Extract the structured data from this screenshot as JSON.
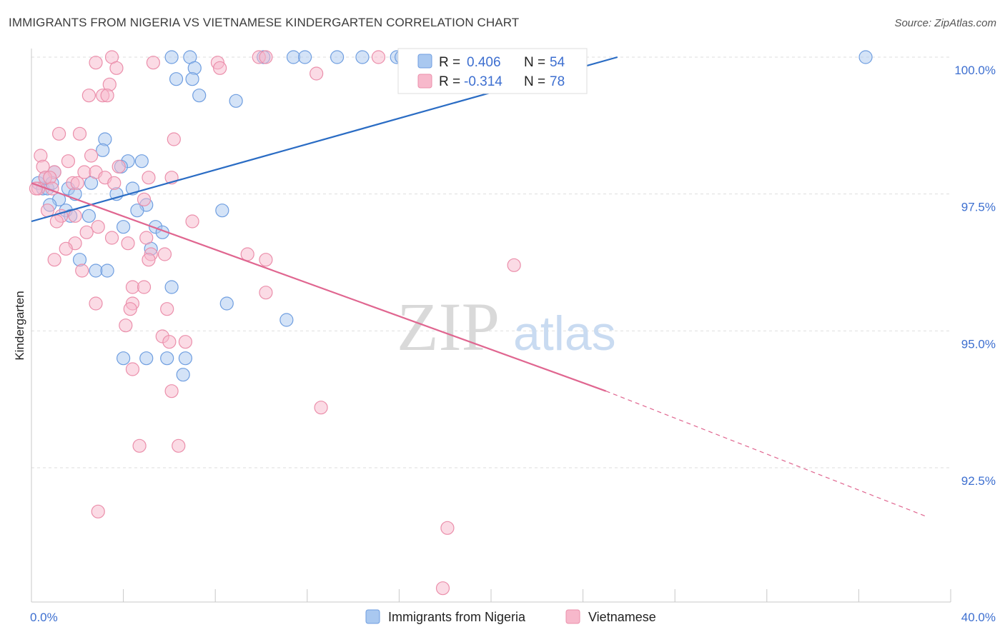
{
  "header": {
    "title": "IMMIGRANTS FROM NIGERIA VS VIETNAMESE KINDERGARTEN CORRELATION CHART",
    "source": "Source: ZipAtlas.com"
  },
  "watermark": {
    "zip": "ZIP",
    "atlas": "atlas"
  },
  "chart_data": {
    "type": "scatter",
    "title": "IMMIGRANTS FROM NIGERIA VS VIETNAMESE KINDERGARTEN CORRELATION CHART",
    "ylabel": "Kindergarten",
    "xlim": [
      0,
      40
    ],
    "ylim": [
      90.5,
      100.3
    ],
    "x_tick_labels": [
      "0.0%",
      "40.0%"
    ],
    "y_ticks": [
      92.5,
      95.0,
      97.5,
      100.0
    ],
    "y_tick_labels": [
      "92.5%",
      "95.0%",
      "97.5%",
      "100.0%"
    ],
    "grid": true,
    "legend_position": "top-center",
    "series": [
      {
        "name": "Immigrants from Nigeria",
        "color": "#a9c8f0",
        "stroke": "#6f9ee0",
        "line_color": "#2a6cc4",
        "r_label": "R =",
        "r_value": "0.406",
        "n_label": "N =",
        "n_value": "54",
        "trend": {
          "x": [
            0,
            25.5
          ],
          "y": [
            97.0,
            100.0
          ],
          "dashed_extension": false
        },
        "points": [
          [
            6.1,
            100.0
          ],
          [
            6.9,
            100.0
          ],
          [
            10.1,
            100.0
          ],
          [
            11.4,
            100.0
          ],
          [
            11.9,
            100.0
          ],
          [
            13.3,
            100.0
          ],
          [
            14.4,
            100.0
          ],
          [
            15.9,
            100.0
          ],
          [
            16.1,
            100.0
          ],
          [
            36.3,
            100.0
          ],
          [
            7.1,
            99.8
          ],
          [
            6.3,
            99.6
          ],
          [
            7.0,
            99.6
          ],
          [
            7.3,
            99.3
          ],
          [
            8.9,
            99.2
          ],
          [
            3.2,
            98.5
          ],
          [
            3.1,
            98.3
          ],
          [
            4.2,
            98.1
          ],
          [
            4.8,
            98.1
          ],
          [
            3.9,
            98.0
          ],
          [
            1.0,
            97.9
          ],
          [
            0.3,
            97.7
          ],
          [
            0.5,
            97.6
          ],
          [
            2.6,
            97.7
          ],
          [
            0.7,
            97.6
          ],
          [
            1.6,
            97.6
          ],
          [
            4.4,
            97.6
          ],
          [
            1.9,
            97.5
          ],
          [
            3.7,
            97.5
          ],
          [
            1.2,
            97.4
          ],
          [
            0.8,
            97.3
          ],
          [
            5.0,
            97.3
          ],
          [
            1.5,
            97.2
          ],
          [
            4.6,
            97.2
          ],
          [
            8.3,
            97.2
          ],
          [
            1.7,
            97.1
          ],
          [
            2.5,
            97.1
          ],
          [
            4.0,
            96.9
          ],
          [
            5.4,
            96.9
          ],
          [
            5.7,
            96.8
          ],
          [
            5.2,
            96.5
          ],
          [
            2.1,
            96.3
          ],
          [
            2.8,
            96.1
          ],
          [
            3.3,
            96.1
          ],
          [
            6.1,
            95.8
          ],
          [
            8.5,
            95.5
          ],
          [
            11.1,
            95.2
          ],
          [
            4.0,
            94.5
          ],
          [
            5.0,
            94.5
          ],
          [
            5.9,
            94.5
          ],
          [
            6.7,
            94.5
          ],
          [
            6.6,
            94.2
          ],
          [
            0.6,
            97.8
          ],
          [
            0.9,
            97.7
          ]
        ]
      },
      {
        "name": "Vietnamese",
        "color": "#f7b8cb",
        "stroke": "#eb8fab",
        "line_color": "#e06690",
        "r_label": "R =",
        "r_value": "-0.314",
        "n_label": "N =",
        "n_value": "78",
        "trend": {
          "x": [
            0,
            25.0
          ],
          "y": [
            97.7,
            93.9
          ],
          "dashed_to": [
            39.0,
            91.6
          ]
        },
        "points": [
          [
            3.5,
            100.0
          ],
          [
            8.1,
            99.9
          ],
          [
            9.9,
            100.0
          ],
          [
            10.2,
            100.0
          ],
          [
            15.1,
            100.0
          ],
          [
            16.3,
            100.0
          ],
          [
            17.7,
            100.0
          ],
          [
            2.8,
            99.9
          ],
          [
            5.3,
            99.9
          ],
          [
            8.2,
            99.8
          ],
          [
            3.7,
            99.8
          ],
          [
            12.4,
            99.7
          ],
          [
            3.4,
            99.5
          ],
          [
            2.5,
            99.3
          ],
          [
            3.1,
            99.3
          ],
          [
            3.3,
            99.3
          ],
          [
            1.2,
            98.6
          ],
          [
            2.1,
            98.6
          ],
          [
            6.2,
            98.5
          ],
          [
            0.4,
            98.2
          ],
          [
            2.6,
            98.2
          ],
          [
            1.6,
            98.1
          ],
          [
            0.5,
            98.0
          ],
          [
            3.8,
            98.0
          ],
          [
            1.0,
            97.9
          ],
          [
            2.3,
            97.9
          ],
          [
            2.8,
            97.9
          ],
          [
            0.6,
            97.8
          ],
          [
            0.8,
            97.8
          ],
          [
            3.2,
            97.8
          ],
          [
            5.1,
            97.8
          ],
          [
            6.1,
            97.8
          ],
          [
            1.8,
            97.7
          ],
          [
            2.0,
            97.7
          ],
          [
            3.6,
            97.7
          ],
          [
            0.3,
            97.6
          ],
          [
            0.9,
            97.6
          ],
          [
            0.2,
            97.6
          ],
          [
            4.9,
            97.4
          ],
          [
            0.7,
            97.2
          ],
          [
            1.3,
            97.1
          ],
          [
            1.9,
            97.1
          ],
          [
            7.0,
            97.0
          ],
          [
            1.1,
            97.0
          ],
          [
            2.9,
            96.9
          ],
          [
            2.4,
            96.8
          ],
          [
            3.5,
            96.7
          ],
          [
            5.0,
            96.7
          ],
          [
            1.9,
            96.6
          ],
          [
            4.2,
            96.6
          ],
          [
            1.5,
            96.5
          ],
          [
            5.2,
            96.4
          ],
          [
            5.8,
            96.4
          ],
          [
            9.4,
            96.4
          ],
          [
            1.0,
            96.3
          ],
          [
            5.1,
            96.3
          ],
          [
            10.2,
            96.3
          ],
          [
            21.0,
            96.2
          ],
          [
            2.2,
            96.1
          ],
          [
            4.4,
            95.8
          ],
          [
            4.9,
            95.8
          ],
          [
            10.2,
            95.7
          ],
          [
            2.8,
            95.5
          ],
          [
            4.4,
            95.5
          ],
          [
            5.9,
            95.4
          ],
          [
            4.3,
            95.4
          ],
          [
            4.1,
            95.1
          ],
          [
            5.7,
            94.9
          ],
          [
            6.0,
            94.8
          ],
          [
            6.7,
            94.8
          ],
          [
            4.4,
            94.3
          ],
          [
            6.1,
            93.9
          ],
          [
            12.6,
            93.6
          ],
          [
            4.7,
            92.9
          ],
          [
            6.4,
            92.9
          ],
          [
            2.9,
            91.7
          ],
          [
            18.1,
            91.4
          ],
          [
            17.9,
            90.3
          ]
        ]
      }
    ]
  }
}
